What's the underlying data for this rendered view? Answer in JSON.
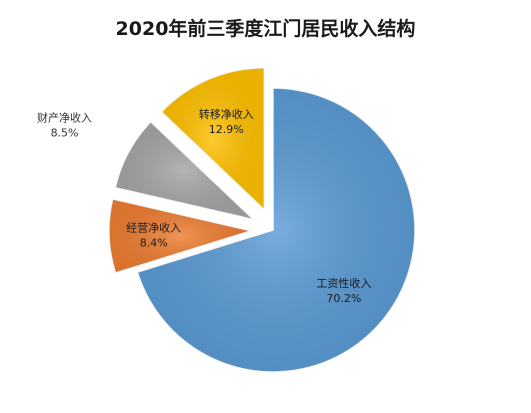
{
  "chart_data": {
    "type": "pie",
    "title": "2020年前三季度江门居民收入结构",
    "slices": [
      {
        "label": "工资性收入",
        "value": 70.2,
        "value_label": "70.2%",
        "color": "#5b9bd5",
        "exploded": false
      },
      {
        "label": "经营净收入",
        "value": 8.4,
        "value_label": "8.4%",
        "color": "#ed7d31",
        "exploded": true
      },
      {
        "label": "财产净收入",
        "value": 8.5,
        "value_label": "8.5%",
        "color": "#a5a5a5",
        "exploded": true
      },
      {
        "label": "转移净收入",
        "value": 12.9,
        "value_label": "12.9%",
        "color": "#ffc000",
        "exploded": true
      }
    ],
    "legend": "none",
    "data_labels": "on-slice"
  }
}
